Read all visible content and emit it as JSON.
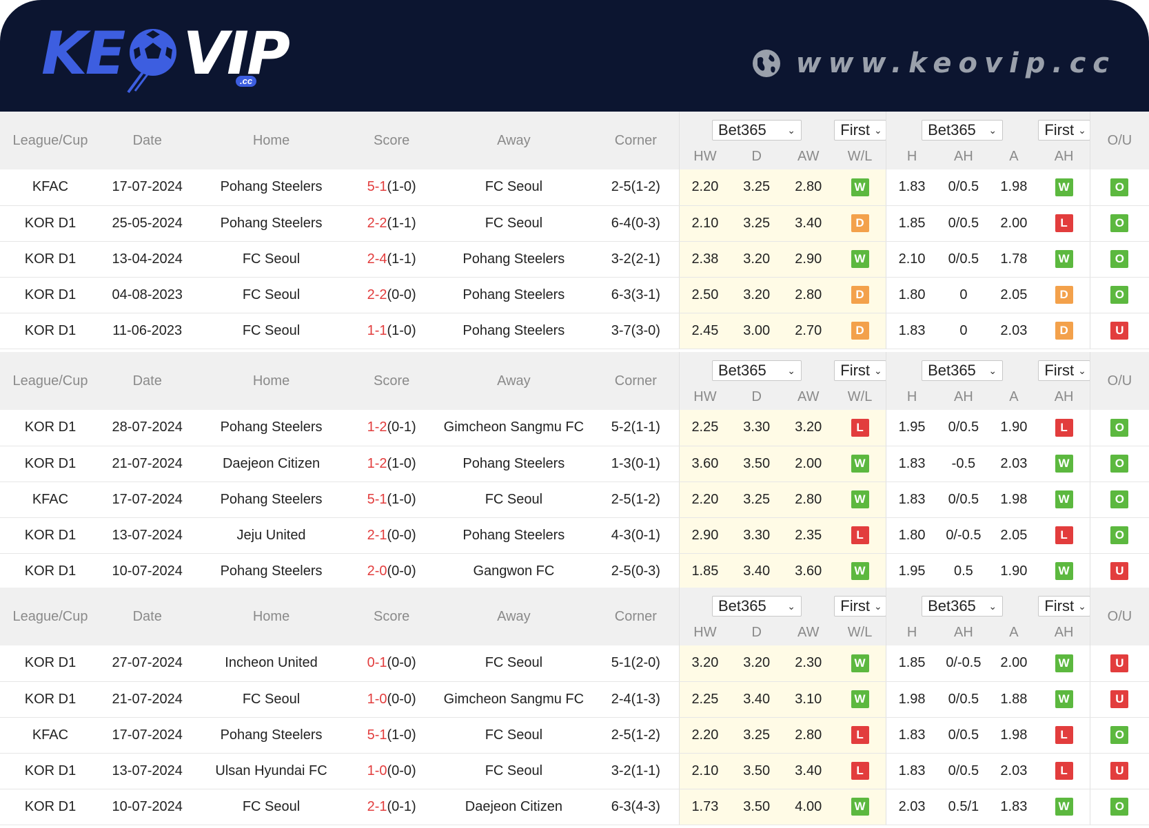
{
  "brand": {
    "logo_k": "KE",
    "logo_vip": "VIP",
    "logo_cc": ".cc",
    "site_url": "www.keovip.cc"
  },
  "columns": {
    "league": "League/Cup",
    "date": "Date",
    "home": "Home",
    "score": "Score",
    "away": "Away",
    "corner": "Corner",
    "hw": "HW",
    "d": "D",
    "aw": "AW",
    "wl": "W/L",
    "h": "H",
    "ah": "AH",
    "a": "A",
    "ah2": "AH",
    "ou": "O/U"
  },
  "dropdowns": {
    "bookmaker": "Bet365",
    "period": "First"
  },
  "colors": {
    "header_bg": "#0c1530",
    "highlight_orange": "#f07a3a",
    "highlight_blue": "#2a9ee5",
    "score_red": "#e23d3d",
    "win_green": "#5cb83f",
    "draw_orange": "#f3a14b",
    "loss_red": "#e23d3d"
  },
  "sections": [
    {
      "rows": [
        {
          "league": "KFAC",
          "date": "17-07-2024",
          "home": "Pohang Steelers",
          "home_hl": "orange",
          "score": "5-1",
          "ht": "(1-0)",
          "away": "FC Seoul",
          "away_hl": "",
          "corner": "2-5(1-2)",
          "hw": "2.20",
          "d": "3.25",
          "aw": "2.80",
          "wl": "W",
          "h": "1.83",
          "ah": "0/0.5",
          "a": "1.98",
          "ahr": "W",
          "ou": "O"
        },
        {
          "league": "KOR D1",
          "date": "25-05-2024",
          "home": "Pohang Steelers",
          "home_hl": "orange",
          "score": "2-2",
          "ht": "(1-1)",
          "away": "FC Seoul",
          "away_hl": "",
          "corner": "6-4(0-3)",
          "hw": "2.10",
          "d": "3.25",
          "aw": "3.40",
          "wl": "D",
          "h": "1.85",
          "ah": "0/0.5",
          "a": "2.00",
          "ahr": "L",
          "ou": "O"
        },
        {
          "league": "KOR D1",
          "date": "13-04-2024",
          "home": "FC Seoul",
          "home_hl": "",
          "score": "2-4",
          "ht": "(1-1)",
          "away": "Pohang Steelers",
          "away_hl": "orange",
          "corner": "3-2(2-1)",
          "hw": "2.38",
          "d": "3.20",
          "aw": "2.90",
          "wl": "W",
          "h": "2.10",
          "ah": "0/0.5",
          "a": "1.78",
          "ahr": "W",
          "ou": "O"
        },
        {
          "league": "KOR D1",
          "date": "04-08-2023",
          "home": "FC Seoul",
          "home_hl": "",
          "score": "2-2",
          "ht": "(0-0)",
          "away": "Pohang Steelers",
          "away_hl": "orange",
          "corner": "6-3(3-1)",
          "hw": "2.50",
          "d": "3.20",
          "aw": "2.80",
          "wl": "D",
          "h": "1.80",
          "ah": "0",
          "a": "2.05",
          "ahr": "D",
          "ou": "O"
        },
        {
          "league": "KOR D1",
          "date": "11-06-2023",
          "home": "FC Seoul",
          "home_hl": "",
          "score": "1-1",
          "ht": "(1-0)",
          "away": "Pohang Steelers",
          "away_hl": "orange",
          "corner": "3-7(3-0)",
          "hw": "2.45",
          "d": "3.00",
          "aw": "2.70",
          "wl": "D",
          "h": "1.83",
          "ah": "0",
          "a": "2.03",
          "ahr": "D",
          "ou": "U"
        }
      ]
    },
    {
      "rows": [
        {
          "league": "KOR D1",
          "date": "28-07-2024",
          "home": "Pohang Steelers",
          "home_hl": "orange",
          "score": "1-2",
          "ht": "(0-1)",
          "away": "Gimcheon Sangmu FC",
          "away_hl": "",
          "corner": "5-2(1-1)",
          "hw": "2.25",
          "d": "3.30",
          "aw": "3.20",
          "wl": "L",
          "h": "1.95",
          "ah": "0/0.5",
          "a": "1.90",
          "ahr": "L",
          "ou": "O"
        },
        {
          "league": "KOR D1",
          "date": "21-07-2024",
          "home": "Daejeon Citizen",
          "home_hl": "",
          "score": "1-2",
          "ht": "(1-0)",
          "away": "Pohang Steelers",
          "away_hl": "orange",
          "corner": "1-3(0-1)",
          "hw": "3.60",
          "d": "3.50",
          "aw": "2.00",
          "wl": "W",
          "h": "1.83",
          "ah": "-0.5",
          "a": "2.03",
          "ahr": "W",
          "ou": "O"
        },
        {
          "league": "KFAC",
          "date": "17-07-2024",
          "home": "Pohang Steelers",
          "home_hl": "orange",
          "score": "5-1",
          "ht": "(1-0)",
          "away": "FC Seoul",
          "away_hl": "",
          "corner": "2-5(1-2)",
          "hw": "2.20",
          "d": "3.25",
          "aw": "2.80",
          "wl": "W",
          "h": "1.83",
          "ah": "0/0.5",
          "a": "1.98",
          "ahr": "W",
          "ou": "O"
        },
        {
          "league": "KOR D1",
          "date": "13-07-2024",
          "home": "Jeju United",
          "home_hl": "",
          "score": "2-1",
          "ht": "(0-0)",
          "away": "Pohang Steelers",
          "away_hl": "orange",
          "corner": "4-3(0-1)",
          "hw": "2.90",
          "d": "3.30",
          "aw": "2.35",
          "wl": "L",
          "h": "1.80",
          "ah": "0/-0.5",
          "a": "2.05",
          "ahr": "L",
          "ou": "O"
        },
        {
          "league": "KOR D1",
          "date": "10-07-2024",
          "home": "Pohang Steelers",
          "home_hl": "orange",
          "score": "2-0",
          "ht": "(0-0)",
          "away": "Gangwon FC",
          "away_hl": "",
          "corner": "2-5(0-3)",
          "hw": "1.85",
          "d": "3.40",
          "aw": "3.60",
          "wl": "W",
          "h": "1.95",
          "ah": "0.5",
          "a": "1.90",
          "ahr": "W",
          "ou": "U"
        }
      ]
    },
    {
      "rows": [
        {
          "league": "KOR D1",
          "date": "27-07-2024",
          "home": "Incheon United",
          "home_hl": "",
          "score": "0-1",
          "ht": "(0-0)",
          "away": "FC Seoul",
          "away_hl": "blue",
          "corner": "5-1(2-0)",
          "hw": "3.20",
          "d": "3.20",
          "aw": "2.30",
          "wl": "W",
          "h": "1.85",
          "ah": "0/-0.5",
          "a": "2.00",
          "ahr": "W",
          "ou": "U"
        },
        {
          "league": "KOR D1",
          "date": "21-07-2024",
          "home": "FC Seoul",
          "home_hl": "blue",
          "score": "1-0",
          "ht": "(0-0)",
          "away": "Gimcheon Sangmu FC",
          "away_hl": "",
          "corner": "2-4(1-3)",
          "hw": "2.25",
          "d": "3.40",
          "aw": "3.10",
          "wl": "W",
          "h": "1.98",
          "ah": "0/0.5",
          "a": "1.88",
          "ahr": "W",
          "ou": "U"
        },
        {
          "league": "KFAC",
          "date": "17-07-2024",
          "home": "Pohang Steelers",
          "home_hl": "",
          "score": "5-1",
          "ht": "(1-0)",
          "away": "FC Seoul",
          "away_hl": "blue",
          "corner": "2-5(1-2)",
          "hw": "2.20",
          "d": "3.25",
          "aw": "2.80",
          "wl": "L",
          "h": "1.83",
          "ah": "0/0.5",
          "a": "1.98",
          "ahr": "L",
          "ou": "O"
        },
        {
          "league": "KOR D1",
          "date": "13-07-2024",
          "home": "Ulsan Hyundai FC",
          "home_hl": "",
          "score": "1-0",
          "ht": "(0-0)",
          "away": "FC Seoul",
          "away_hl": "blue",
          "corner": "3-2(1-1)",
          "hw": "2.10",
          "d": "3.50",
          "aw": "3.40",
          "wl": "L",
          "h": "1.83",
          "ah": "0/0.5",
          "a": "2.03",
          "ahr": "L",
          "ou": "U"
        },
        {
          "league": "KOR D1",
          "date": "10-07-2024",
          "home": "FC Seoul",
          "home_hl": "blue",
          "score": "2-1",
          "ht": "(0-1)",
          "away": "Daejeon Citizen",
          "away_hl": "",
          "corner": "6-3(4-3)",
          "hw": "1.73",
          "d": "3.50",
          "aw": "4.00",
          "wl": "W",
          "h": "2.03",
          "ah": "0.5/1",
          "a": "1.83",
          "ahr": "W",
          "ou": "O"
        }
      ]
    }
  ]
}
